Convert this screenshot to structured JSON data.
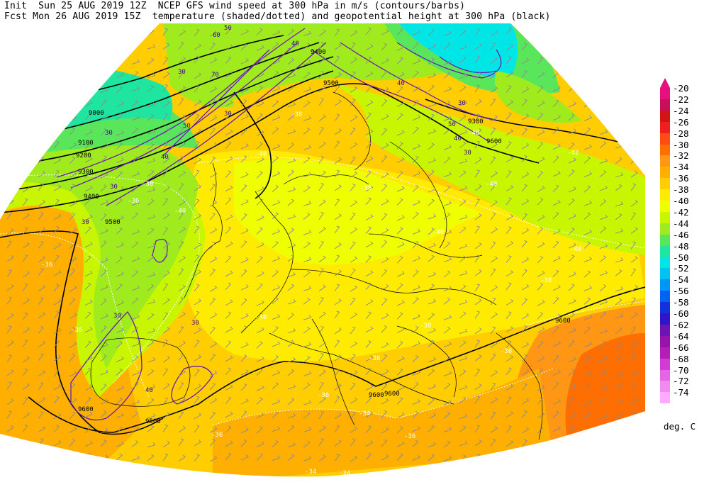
{
  "header": {
    "line1": "Init  Sun 25 AUG 2019 12Z  NCEP GFS wind speed at 300 hPa in m/s (contours/barbs)",
    "line2": "Fcst Mon 26 AUG 2019 15Z  temperature (shaded/dotted) and geopotential height at 300 hPa (black)"
  },
  "legend": {
    "units": "deg. C",
    "levels": [
      {
        "label": "-20",
        "color": "#e8107e"
      },
      {
        "label": "-22",
        "color": "#c8105a"
      },
      {
        "label": "-24",
        "color": "#d21414"
      },
      {
        "label": "-26",
        "color": "#f01e1e"
      },
      {
        "label": "-28",
        "color": "#ff4b14"
      },
      {
        "label": "-30",
        "color": "#ff6e00"
      },
      {
        "label": "-32",
        "color": "#ff9614"
      },
      {
        "label": "-34",
        "color": "#ffaf00"
      },
      {
        "label": "-36",
        "color": "#ffcd00"
      },
      {
        "label": "-38",
        "color": "#ffeb00"
      },
      {
        "label": "-40",
        "color": "#f0ff00"
      },
      {
        "label": "-42",
        "color": "#c8f500"
      },
      {
        "label": "-44",
        "color": "#a0eb1e"
      },
      {
        "label": "-46",
        "color": "#5ae65a"
      },
      {
        "label": "-48",
        "color": "#1ee6a0"
      },
      {
        "label": "-50",
        "color": "#00e6e6"
      },
      {
        "label": "-52",
        "color": "#00c3f0"
      },
      {
        "label": "-54",
        "color": "#0096f5"
      },
      {
        "label": "-56",
        "color": "#0064f0"
      },
      {
        "label": "-58",
        "color": "#1432dc"
      },
      {
        "label": "-60",
        "color": "#3214c8"
      },
      {
        "label": "-62",
        "color": "#6e14b4"
      },
      {
        "label": "-64",
        "color": "#9614aa"
      },
      {
        "label": "-66",
        "color": "#b41eb4"
      },
      {
        "label": "-68",
        "color": "#d23cd2"
      },
      {
        "label": "-70",
        "color": "#e664e6"
      },
      {
        "label": "-72",
        "color": "#f08cf0"
      },
      {
        "label": "-74",
        "color": "#ffaaff"
      }
    ]
  },
  "map": {
    "height_labels": [
      "9000",
      "9100",
      "9200",
      "9300",
      "9400",
      "9500",
      "9600",
      "9400",
      "9500",
      "9300",
      "9600",
      "9600",
      "9600",
      "9500",
      "9600"
    ],
    "wind_labels": [
      "30",
      "30",
      "30",
      "40",
      "50",
      "30",
      "30",
      "40",
      "40",
      "30",
      "50",
      "40",
      "30",
      "30",
      "40",
      "30",
      "70",
      "60",
      "50"
    ],
    "temp_labels": [
      "-36",
      "-38",
      "-40",
      "-40",
      "-42",
      "-40",
      "-40",
      "-38",
      "-36",
      "-36",
      "-36",
      "-38",
      "-34",
      "-34",
      "-38",
      "-40",
      "-36",
      "-34",
      "-36",
      "-48",
      "-38",
      "-36",
      "-40",
      "-38"
    ]
  }
}
